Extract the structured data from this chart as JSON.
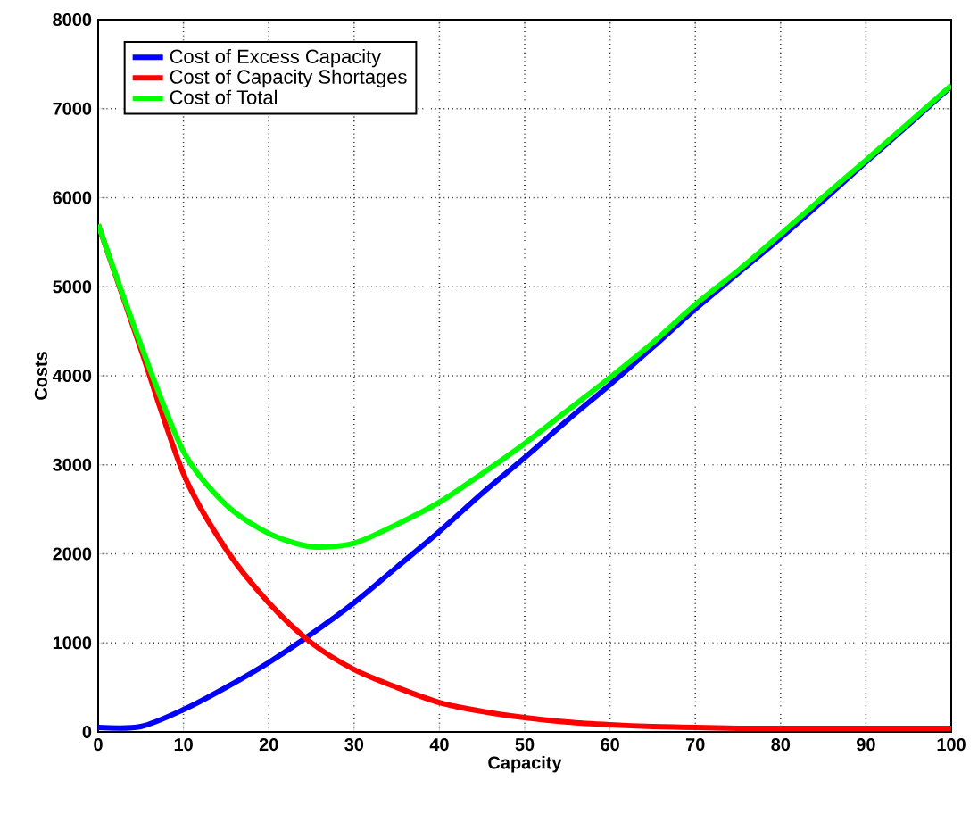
{
  "chart_data": {
    "type": "line",
    "xlabel": "Capacity",
    "ylabel": "Costs",
    "x": [
      0,
      5,
      10,
      15,
      20,
      25,
      30,
      35,
      40,
      45,
      50,
      55,
      60,
      65,
      70,
      75,
      80,
      85,
      90,
      95,
      100
    ],
    "series": [
      {
        "name": "Cost of Excess Capacity",
        "color": "#0000ff",
        "values": [
          50,
          60,
          250,
          500,
          780,
          1100,
          1450,
          1850,
          2250,
          2680,
          3080,
          3500,
          3900,
          4320,
          4750,
          5150,
          5550,
          5970,
          6400,
          6820,
          7250
        ]
      },
      {
        "name": "Cost of Capacity Shortages",
        "color": "#ff0000",
        "values": [
          5700,
          4300,
          2900,
          2050,
          1450,
          1000,
          700,
          500,
          330,
          230,
          160,
          110,
          80,
          60,
          50,
          40,
          40,
          40,
          40,
          40,
          40
        ]
      },
      {
        "name": "Cost of Total",
        "color": "#00ff00",
        "values": [
          5700,
          4350,
          3150,
          2550,
          2230,
          2080,
          2120,
          2330,
          2580,
          2900,
          3240,
          3610,
          3980,
          4370,
          4800,
          5180,
          5590,
          6010,
          6420,
          6840,
          7260
        ]
      }
    ],
    "xlim": [
      0,
      100
    ],
    "ylim": [
      0,
      8000
    ],
    "xticks": [
      0,
      10,
      20,
      30,
      40,
      50,
      60,
      70,
      80,
      90,
      100
    ],
    "yticks": [
      0,
      1000,
      2000,
      3000,
      4000,
      5000,
      6000,
      7000,
      8000
    ],
    "grid": true,
    "legend": "top left",
    "marker": "none",
    "line_style": "solid"
  }
}
